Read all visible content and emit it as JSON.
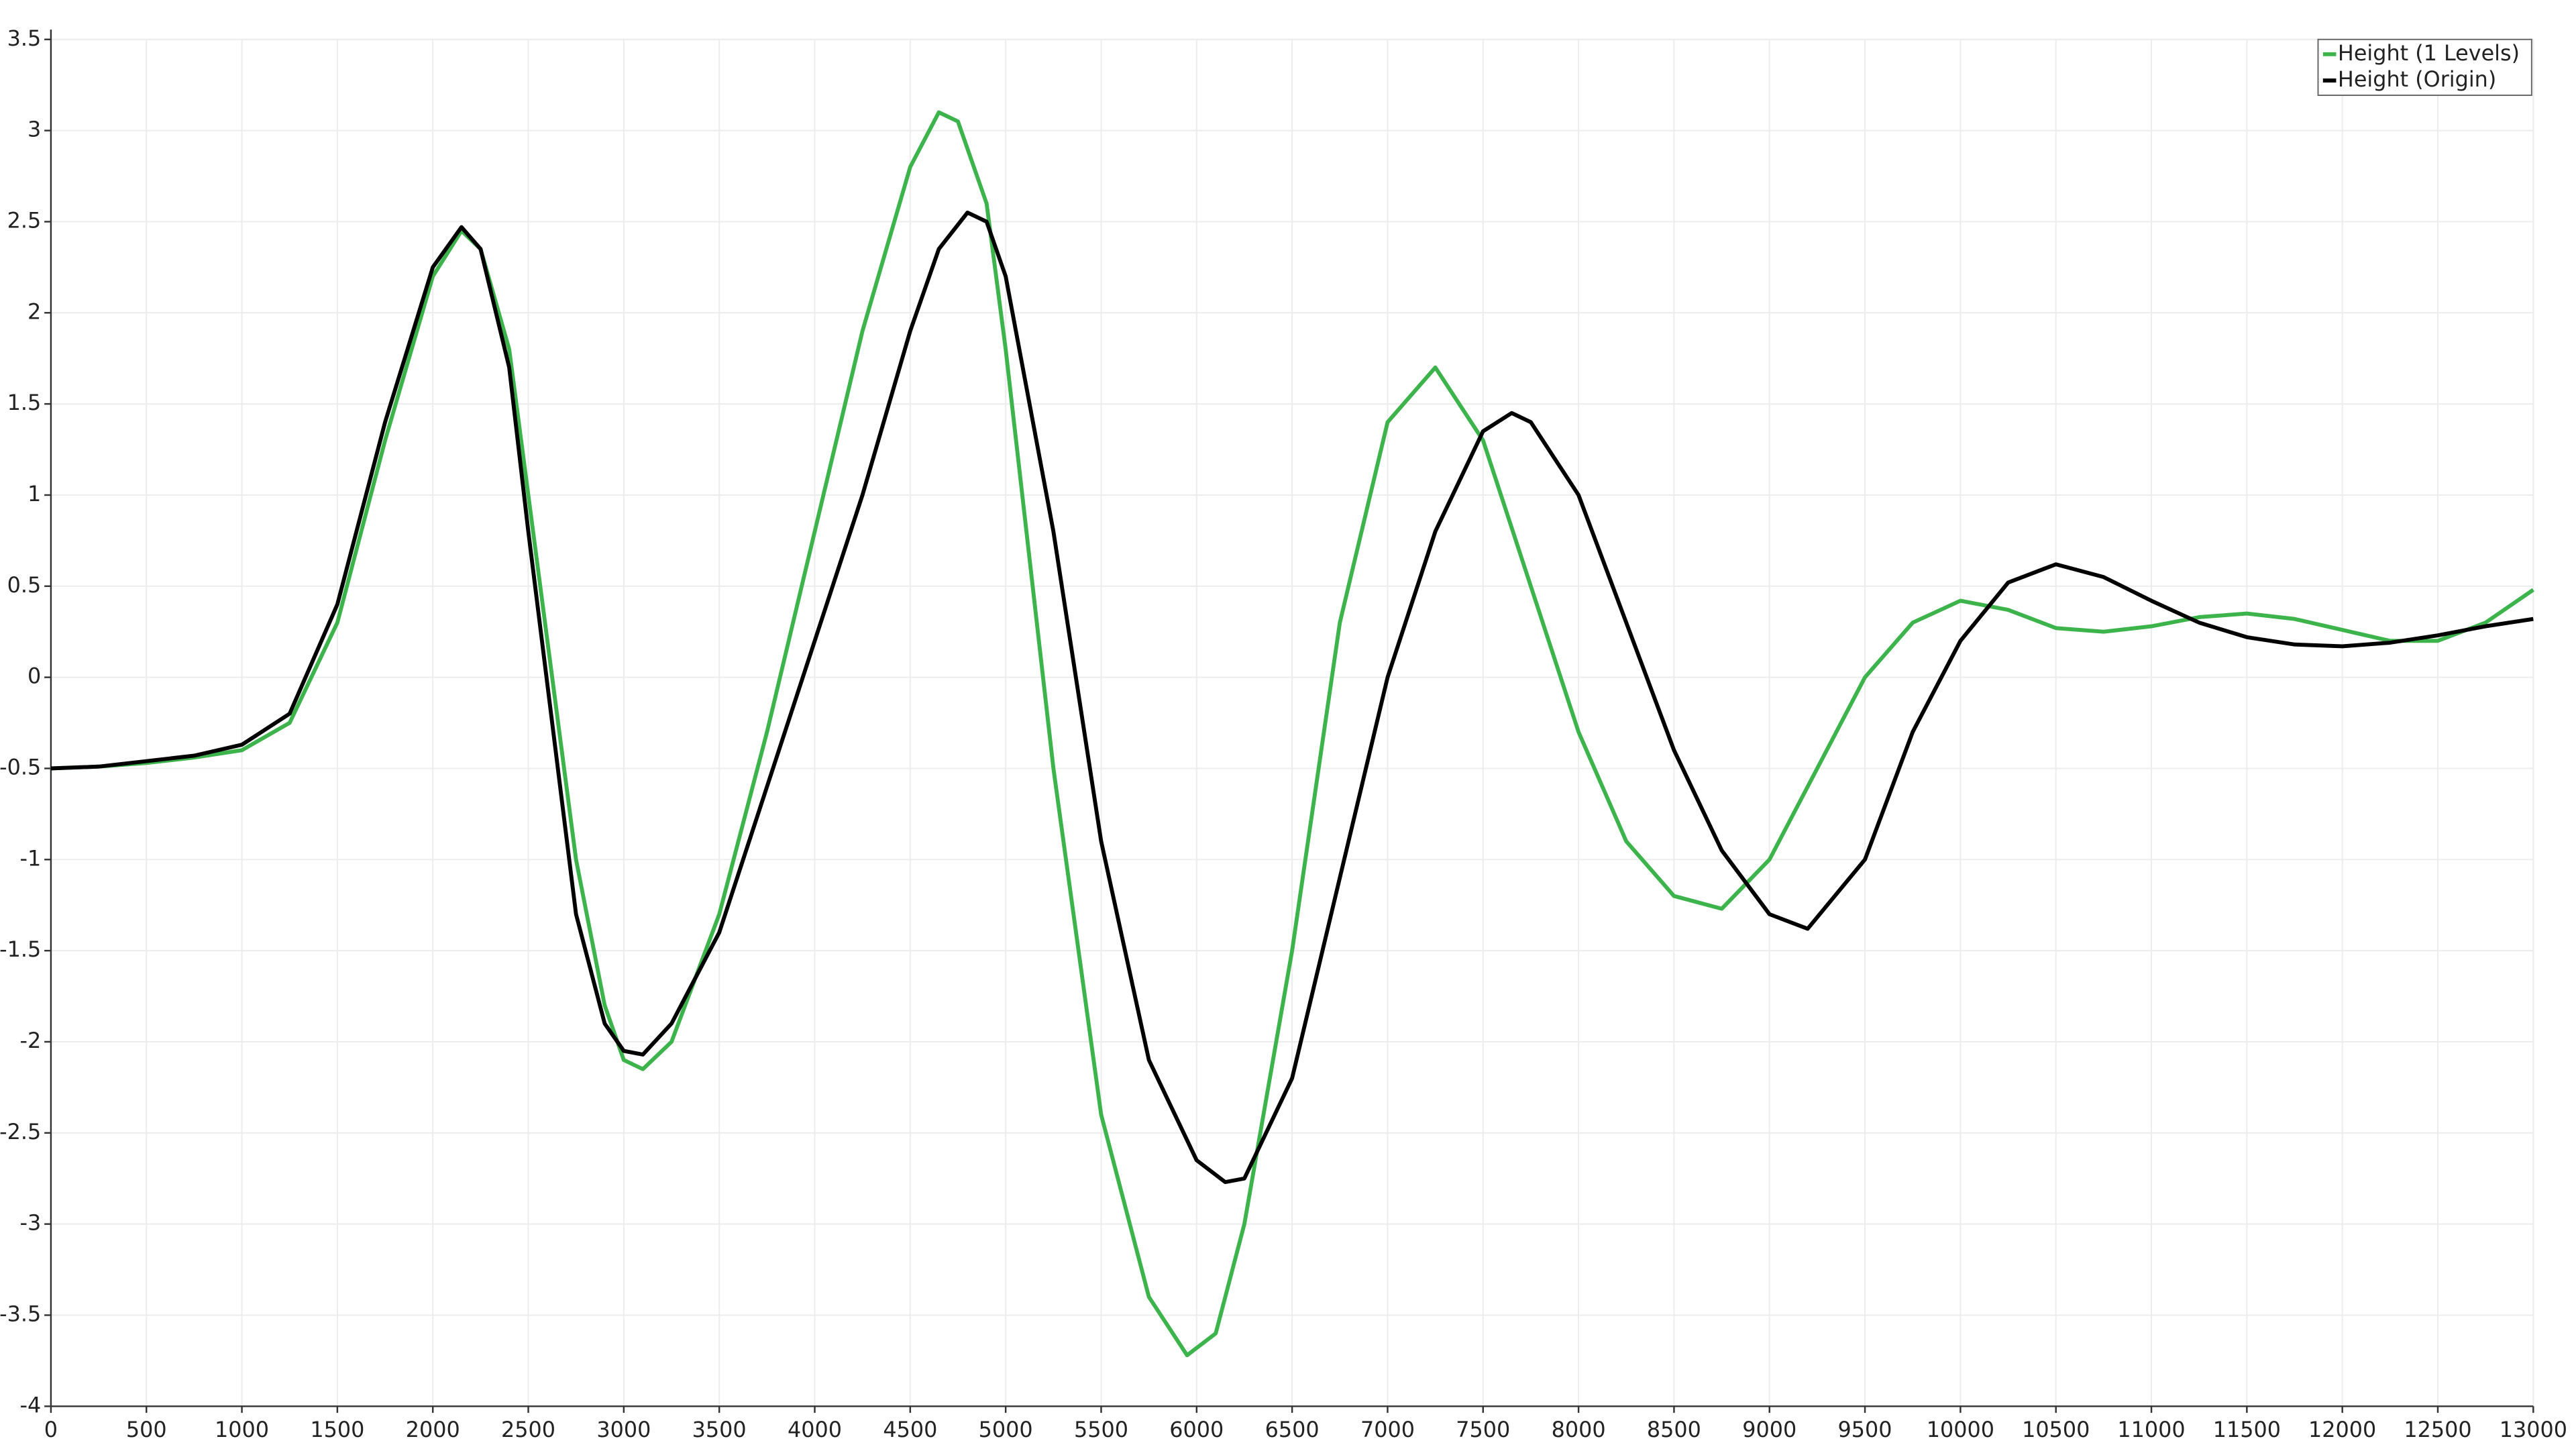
{
  "chart_data": {
    "type": "line",
    "series": [
      {
        "name": "Height (1 Levels)",
        "color": "#3cb44b",
        "x": [
          0,
          250,
          500,
          750,
          1000,
          1250,
          1500,
          1750,
          2000,
          2150,
          2250,
          2400,
          2500,
          2750,
          2900,
          3000,
          3100,
          3250,
          3500,
          3750,
          4000,
          4250,
          4500,
          4650,
          4750,
          4900,
          5000,
          5250,
          5500,
          5750,
          5950,
          6100,
          6250,
          6500,
          6750,
          7000,
          7250,
          7500,
          7750,
          8000,
          8250,
          8500,
          8750,
          9000,
          9250,
          9500,
          9750,
          10000,
          10250,
          10500,
          10750,
          11000,
          11250,
          11500,
          11750,
          12000,
          12250,
          12500,
          12750,
          13000
        ],
        "values": [
          -0.5,
          -0.49,
          -0.47,
          -0.44,
          -0.4,
          -0.25,
          0.3,
          1.3,
          2.2,
          2.45,
          2.35,
          1.8,
          1.0,
          -1.0,
          -1.8,
          -2.1,
          -2.15,
          -2.0,
          -1.3,
          -0.3,
          0.8,
          1.9,
          2.8,
          3.1,
          3.05,
          2.6,
          1.8,
          -0.5,
          -2.4,
          -3.4,
          -3.72,
          -3.6,
          -3.0,
          -1.5,
          0.3,
          1.4,
          1.7,
          1.3,
          0.5,
          -0.3,
          -0.9,
          -1.2,
          -1.27,
          -1.0,
          -0.5,
          0.0,
          0.3,
          0.42,
          0.37,
          0.27,
          0.25,
          0.28,
          0.33,
          0.35,
          0.32,
          0.26,
          0.2,
          0.2,
          0.3,
          0.48
        ]
      },
      {
        "name": "Height (Origin)",
        "color": "#000000",
        "x": [
          0,
          250,
          500,
          750,
          1000,
          1250,
          1500,
          1750,
          2000,
          2150,
          2250,
          2400,
          2500,
          2750,
          2900,
          3000,
          3100,
          3250,
          3500,
          3750,
          4000,
          4250,
          4500,
          4650,
          4800,
          4900,
          5000,
          5250,
          5500,
          5750,
          6000,
          6150,
          6250,
          6500,
          6750,
          7000,
          7250,
          7500,
          7650,
          7750,
          8000,
          8250,
          8500,
          8750,
          9000,
          9200,
          9500,
          9750,
          10000,
          10250,
          10500,
          10750,
          11000,
          11250,
          11500,
          11750,
          12000,
          12250,
          12500,
          12750,
          13000
        ],
        "values": [
          -0.5,
          -0.49,
          -0.46,
          -0.43,
          -0.37,
          -0.2,
          0.4,
          1.4,
          2.25,
          2.47,
          2.35,
          1.7,
          0.8,
          -1.3,
          -1.9,
          -2.05,
          -2.07,
          -1.9,
          -1.4,
          -0.6,
          0.2,
          1.0,
          1.9,
          2.35,
          2.55,
          2.5,
          2.2,
          0.8,
          -0.9,
          -2.1,
          -2.65,
          -2.77,
          -2.75,
          -2.2,
          -1.1,
          0.0,
          0.8,
          1.35,
          1.45,
          1.4,
          1.0,
          0.3,
          -0.4,
          -0.95,
          -1.3,
          -1.38,
          -1.0,
          -0.3,
          0.2,
          0.52,
          0.62,
          0.55,
          0.42,
          0.3,
          0.22,
          0.18,
          0.17,
          0.19,
          0.23,
          0.28,
          0.32
        ]
      }
    ],
    "xlim": [
      0,
      13000
    ],
    "xticks": [
      0,
      500,
      1000,
      1500,
      2000,
      2500,
      3000,
      3500,
      4000,
      4500,
      5000,
      5500,
      6000,
      6500,
      7000,
      7500,
      8000,
      8500,
      9000,
      9500,
      10000,
      10500,
      11000,
      11500,
      12000,
      12500,
      13000
    ],
    "ylim": [
      -4,
      3.5
    ],
    "yticks": [
      -4,
      -3.5,
      -3,
      -2.5,
      -2,
      -1.5,
      -1,
      -0.5,
      0,
      0.5,
      1,
      1.5,
      2,
      2.5,
      3,
      3.5
    ],
    "grid": true,
    "legend": "top-right"
  }
}
